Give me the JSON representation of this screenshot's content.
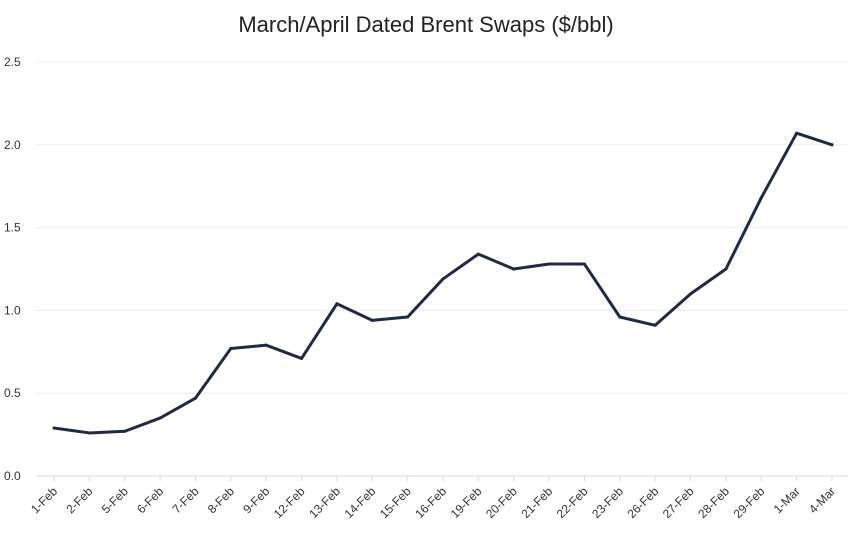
{
  "chart_data": {
    "type": "line",
    "title": "March/April Dated Brent Swaps ($/bbl)",
    "xlabel": "",
    "ylabel": "",
    "ylim": [
      0,
      2.5
    ],
    "yticks": [
      "0.0",
      "0.5",
      "1.0",
      "1.5",
      "2.0",
      "2.5"
    ],
    "grid": true,
    "legend": "none",
    "categories": [
      "1-Feb",
      "2-Feb",
      "5-Feb",
      "6-Feb",
      "7-Feb",
      "8-Feb",
      "9-Feb",
      "12-Feb",
      "13-Feb",
      "14-Feb",
      "15-Feb",
      "16-Feb",
      "19-Feb",
      "20-Feb",
      "21-Feb",
      "22-Feb",
      "23-Feb",
      "26-Feb",
      "27-Feb",
      "28-Feb",
      "29-Feb",
      "1-Mar",
      "4-Mar"
    ],
    "series": [
      {
        "color": "#1f2a44",
        "values": [
          0.29,
          0.26,
          0.27,
          0.35,
          0.47,
          0.77,
          0.79,
          0.71,
          1.04,
          0.94,
          0.96,
          1.19,
          1.34,
          1.25,
          1.28,
          1.28,
          0.96,
          0.91,
          1.1,
          1.25,
          1.68,
          2.07,
          2.0
        ]
      }
    ]
  }
}
